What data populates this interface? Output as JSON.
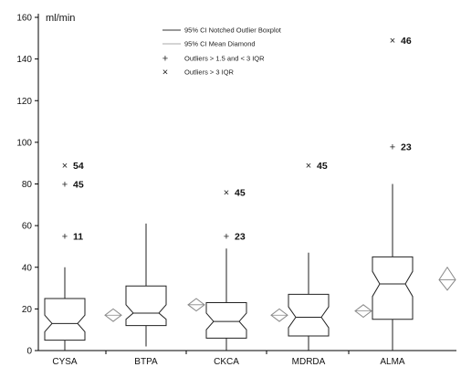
{
  "chart_data": {
    "type": "box",
    "unit_label": "ml/min",
    "ylim": [
      0,
      160
    ],
    "y_ticks": [
      0,
      20,
      40,
      60,
      80,
      100,
      120,
      140,
      160
    ],
    "categories": [
      "CYSA",
      "BTPA",
      "CKCA",
      "MDRDA",
      "ALMA"
    ],
    "boxes": [
      {
        "name": "CYSA",
        "whisker_low": 0,
        "q1": 5,
        "notch_low": 9,
        "median": 13,
        "notch_high": 17,
        "q3": 25,
        "whisker_high": 40
      },
      {
        "name": "BTPA",
        "whisker_low": 2,
        "q1": 12,
        "notch_low": 15,
        "median": 18,
        "notch_high": 22,
        "q3": 31,
        "whisker_high": 61
      },
      {
        "name": "CKCA",
        "whisker_low": 0,
        "q1": 6,
        "notch_low": 10,
        "median": 14,
        "notch_high": 18,
        "q3": 23,
        "whisker_high": 49
      },
      {
        "name": "MDRDA",
        "whisker_low": 0,
        "q1": 7,
        "notch_low": 11,
        "median": 16,
        "notch_high": 21,
        "q3": 27,
        "whisker_high": 47
      },
      {
        "name": "ALMA",
        "whisker_low": 0,
        "q1": 15,
        "notch_low": 26,
        "median": 32,
        "notch_high": 38,
        "q3": 45,
        "whisker_high": 80
      }
    ],
    "mean_diamonds": [
      {
        "name": "CYSA",
        "mean": 17,
        "ci_low": 14,
        "ci_high": 20
      },
      {
        "name": "BTPA",
        "mean": 22,
        "ci_low": 19,
        "ci_high": 25
      },
      {
        "name": "CKCA",
        "mean": 17,
        "ci_low": 14,
        "ci_high": 20
      },
      {
        "name": "MDRDA",
        "mean": 19,
        "ci_low": 16,
        "ci_high": 22
      },
      {
        "name": "ALMA",
        "mean": 34,
        "ci_low": 29,
        "ci_high": 40
      }
    ],
    "outliers": [
      {
        "category": "CYSA",
        "value": 89,
        "marker": "x",
        "label": "54"
      },
      {
        "category": "CYSA",
        "value": 80,
        "marker": "+",
        "label": "45"
      },
      {
        "category": "CYSA",
        "value": 55,
        "marker": "+",
        "label": "11"
      },
      {
        "category": "CKCA",
        "value": 76,
        "marker": "x",
        "label": "45"
      },
      {
        "category": "CKCA",
        "value": 55,
        "marker": "+",
        "label": "23"
      },
      {
        "category": "MDRDA",
        "value": 89,
        "marker": "x",
        "label": "45"
      },
      {
        "category": "ALMA",
        "value": 149,
        "marker": "x",
        "label": "46"
      },
      {
        "category": "ALMA",
        "value": 98,
        "marker": "+",
        "label": "23"
      }
    ],
    "legend": [
      {
        "symbol": "line-dark",
        "text": "95% CI Notched Outlier Boxplot"
      },
      {
        "symbol": "line-light",
        "text": "95% CI Mean Diamond"
      },
      {
        "symbol": "+",
        "text": "Outliers > 1.5 and < 3 IQR"
      },
      {
        "symbol": "x",
        "text": "Outliers > 3 IQR"
      }
    ],
    "legend_position": "top-center",
    "grid": false
  }
}
